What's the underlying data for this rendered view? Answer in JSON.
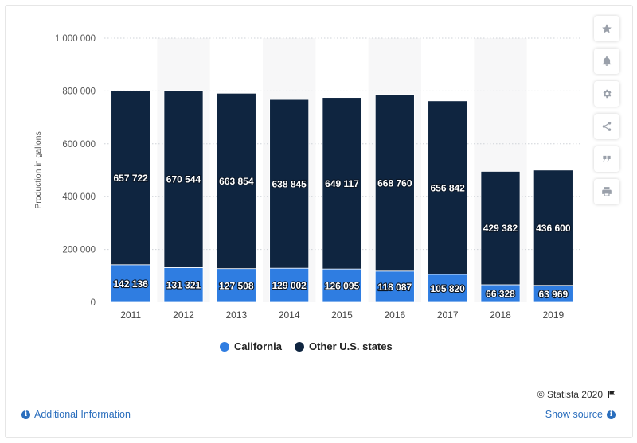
{
  "chart_data": {
    "type": "bar",
    "stacked": true,
    "categories": [
      "2011",
      "2012",
      "2013",
      "2014",
      "2015",
      "2016",
      "2017",
      "2018",
      "2019"
    ],
    "series": [
      {
        "name": "California",
        "color": "#2f7de1",
        "values": [
          142136,
          131321,
          127508,
          129002,
          126095,
          118087,
          105820,
          66328,
          63969
        ],
        "labels": [
          "142 136",
          "131 321",
          "127 508",
          "129 002",
          "126 095",
          "118 087",
          "105 820",
          "66 328",
          "63 969"
        ]
      },
      {
        "name": "Other U.S. states",
        "color": "#0f2540",
        "values": [
          657722,
          670544,
          663854,
          638845,
          649117,
          668760,
          656842,
          429382,
          436600
        ],
        "labels": [
          "657 722",
          "670 544",
          "663 854",
          "638 845",
          "649 117",
          "668 760",
          "656 842",
          "429 382",
          "436 600"
        ]
      }
    ],
    "ylabel": "Production in gallons",
    "ylim": [
      0,
      1000000
    ],
    "yticks": [
      0,
      200000,
      400000,
      600000,
      800000,
      1000000
    ],
    "ytick_labels": [
      "0",
      "200 000",
      "400 000",
      "600 000",
      "800 000",
      "1 000 000"
    ],
    "grid": true,
    "legend_position": "bottom"
  },
  "legend": {
    "california": "California",
    "other": "Other U.S. states"
  },
  "footer": {
    "credit": "© Statista 2020",
    "additional_info": "Additional Information",
    "show_source": "Show source"
  },
  "sidebar_icons": [
    "star-icon",
    "bell-icon",
    "gear-icon",
    "share-icon",
    "quote-icon",
    "print-icon"
  ]
}
